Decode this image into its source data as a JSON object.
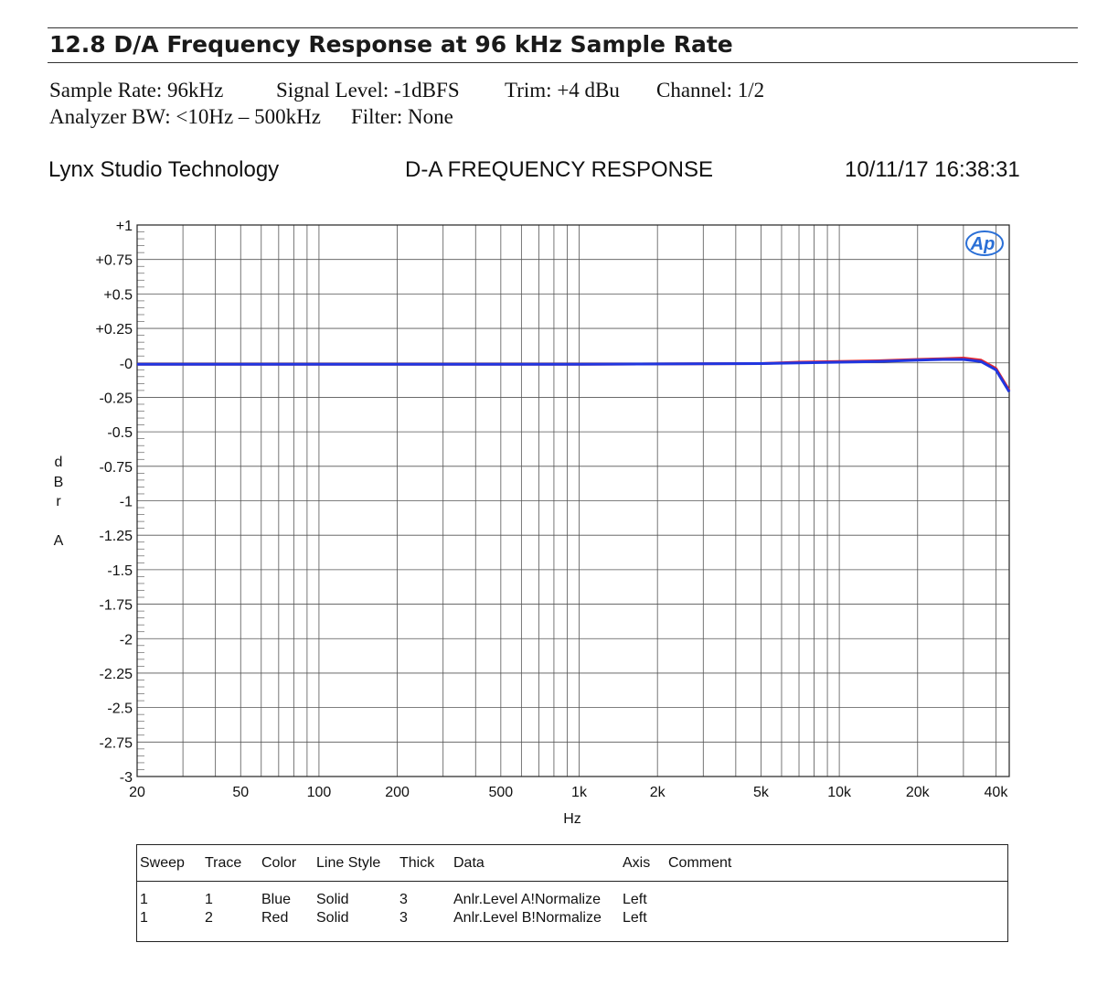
{
  "page": {
    "section_title": "12.8 D/A Frequency Response at 96 kHz Sample Rate",
    "meta_line1": {
      "sample_rate": "Sample Rate: 96kHz",
      "signal_level": "Signal Level: -1dBFS",
      "trim": "Trim: +4 dBu",
      "channel": "Channel: 1/2"
    },
    "meta_line2": {
      "analyzer_bw": "Analyzer BW: <10Hz – 500kHz",
      "filter": "Filter: None"
    }
  },
  "header": {
    "company": "Lynx Studio Technology",
    "chart_title": "D-A FREQUENCY RESPONSE",
    "timestamp": "10/11/17 16:38:31"
  },
  "logo": {
    "text": "Ap",
    "color": "#2a6fd6"
  },
  "chart_data": {
    "type": "line",
    "title": "D-A FREQUENCY RESPONSE",
    "xlabel": "Hz",
    "ylabel": "dBr A",
    "ylabel_chars": [
      "d",
      "B",
      "r",
      "A"
    ],
    "x_scale": "log",
    "xlim": [
      20,
      45000
    ],
    "ylim": [
      -3,
      1
    ],
    "grid": true,
    "y_ticks": [
      {
        "value": 1,
        "label": "+1"
      },
      {
        "value": 0.75,
        "label": "+0.75"
      },
      {
        "value": 0.5,
        "label": "+0.5"
      },
      {
        "value": 0.25,
        "label": "+0.25"
      },
      {
        "value": 0,
        "label": "-0"
      },
      {
        "value": -0.25,
        "label": "-0.25"
      },
      {
        "value": -0.5,
        "label": "-0.5"
      },
      {
        "value": -0.75,
        "label": "-0.75"
      },
      {
        "value": -1,
        "label": "-1"
      },
      {
        "value": -1.25,
        "label": "-1.25"
      },
      {
        "value": -1.5,
        "label": "-1.5"
      },
      {
        "value": -1.75,
        "label": "-1.75"
      },
      {
        "value": -2,
        "label": "-2"
      },
      {
        "value": -2.25,
        "label": "-2.25"
      },
      {
        "value": -2.5,
        "label": "-2.5"
      },
      {
        "value": -2.75,
        "label": "-2.75"
      },
      {
        "value": -3,
        "label": "-3"
      }
    ],
    "x_ticks": [
      {
        "value": 20,
        "label": "20"
      },
      {
        "value": 50,
        "label": "50"
      },
      {
        "value": 100,
        "label": "100"
      },
      {
        "value": 200,
        "label": "200"
      },
      {
        "value": 500,
        "label": "500"
      },
      {
        "value": 1000,
        "label": "1k"
      },
      {
        "value": 2000,
        "label": "2k"
      },
      {
        "value": 5000,
        "label": "5k"
      },
      {
        "value": 10000,
        "label": "10k"
      },
      {
        "value": 20000,
        "label": "20k"
      },
      {
        "value": 40000,
        "label": "40k"
      }
    ],
    "x_grid": [
      20,
      30,
      40,
      50,
      60,
      70,
      80,
      90,
      100,
      200,
      300,
      400,
      500,
      600,
      700,
      800,
      900,
      1000,
      2000,
      3000,
      4000,
      5000,
      6000,
      7000,
      8000,
      9000,
      10000,
      20000,
      30000,
      40000
    ],
    "series": [
      {
        "color": "#e8262a",
        "x": [
          20,
          100,
          1000,
          5000,
          7000,
          10000,
          14000,
          20000,
          25000,
          30000,
          35000,
          40000,
          45000
        ],
        "y": [
          -0.01,
          -0.01,
          -0.01,
          -0.005,
          0.005,
          0.01,
          0.015,
          0.025,
          0.03,
          0.035,
          0.02,
          -0.04,
          -0.2
        ]
      },
      {
        "color": "#2036e0",
        "x": [
          20,
          100,
          1000,
          5000,
          7000,
          10000,
          14000,
          20000,
          25000,
          30000,
          35000,
          40000,
          45000
        ],
        "y": [
          -0.01,
          -0.01,
          -0.01,
          -0.005,
          0.0,
          0.005,
          0.01,
          0.02,
          0.025,
          0.025,
          0.01,
          -0.05,
          -0.21
        ]
      }
    ]
  },
  "legend": {
    "headers": [
      "Sweep",
      "Trace",
      "Color",
      "Line Style",
      "Thick",
      "Data",
      "Axis",
      "Comment"
    ],
    "rows": [
      [
        "1",
        "1",
        "Blue",
        "Solid",
        "3",
        "Anlr.Level A!Normalize",
        "Left",
        ""
      ],
      [
        "1",
        "2",
        "Red",
        "Solid",
        "3",
        "Anlr.Level B!Normalize",
        "Left",
        ""
      ]
    ]
  }
}
